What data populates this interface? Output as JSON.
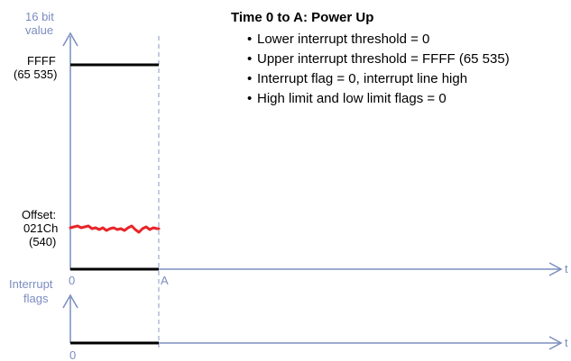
{
  "diagram": {
    "y_axis_label_line1": "16 bit",
    "y_axis_label_line2": "value",
    "ffff_label_line1": "FFFF",
    "ffff_label_line2": "(65 535)",
    "offset_label_line1": "Offset:",
    "offset_label_line2": "021Ch",
    "offset_label_line3": "(540)",
    "origin_label": "0",
    "marker_label": "A",
    "time_label": "t",
    "interrupt_label_line1": "Interrupt",
    "interrupt_label_line2": "flags",
    "interrupt_origin_label": "0",
    "interrupt_time_label": "t"
  },
  "notes": {
    "title": "Time 0 to A: Power Up",
    "bullets": [
      "Lower interrupt threshold = 0",
      "Upper interrupt threshold = FFFF (65 535)",
      "Interrupt flag = 0, interrupt line high",
      "High limit and low limit flags = 0"
    ]
  },
  "colors": {
    "axis": "#7b8dc0",
    "level": "#000000",
    "signal": "#e8262a",
    "dashed": "#8a9ac6"
  }
}
